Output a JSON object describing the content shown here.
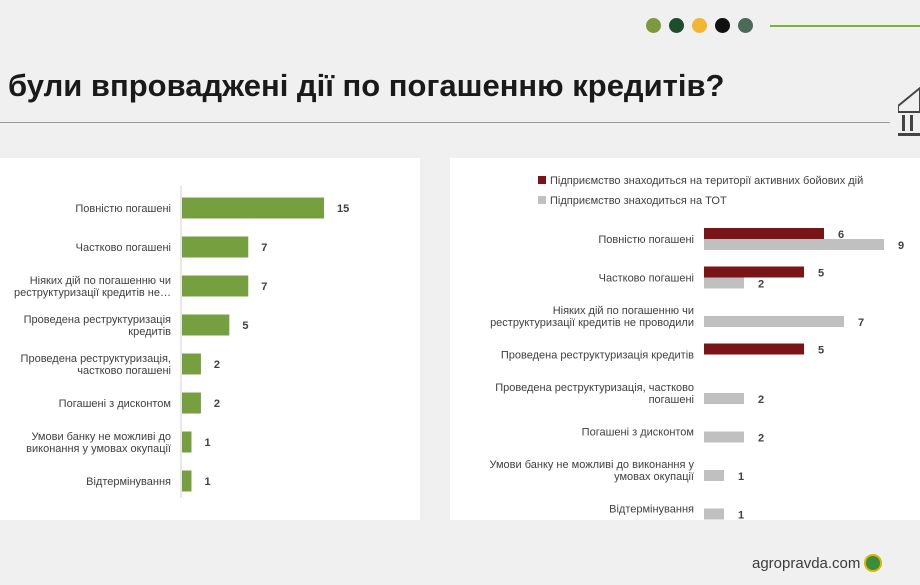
{
  "header": {
    "title": "були впроваджені дії по погашенню кредитів?",
    "dots": [
      "#7b9a3c",
      "#1e4d2b",
      "#f2b632",
      "#111111",
      "#4a6b5a"
    ]
  },
  "watermark": "agropravda.com",
  "chart_data": [
    {
      "type": "bar",
      "orientation": "horizontal",
      "categories": [
        [
          "Повністю погашені"
        ],
        [
          "Частково погашені"
        ],
        [
          "Ніяких дій по погашенню чи",
          "реструктуризації кредитів не…"
        ],
        [
          "Проведена реструктуризація",
          "кредитів"
        ],
        [
          "Проведена реструктуризація,",
          "частково погашені"
        ],
        [
          "Погашені з дисконтом"
        ],
        [
          "Умови банку не можливі до",
          "виконання у умовах окупації"
        ],
        [
          "Відтермінування"
        ]
      ],
      "series": [
        {
          "values": [
            15,
            7,
            7,
            5,
            2,
            2,
            1,
            1
          ],
          "color": "#76a040"
        }
      ],
      "xlim": [
        0,
        15
      ]
    },
    {
      "type": "bar",
      "orientation": "horizontal",
      "legend_position": "top",
      "categories": [
        [
          "Повністю погашені"
        ],
        [
          "Частково погашені"
        ],
        [
          "Ніяких дій по погашенню чи",
          "реструктуризації кредитів не проводили"
        ],
        [
          "Проведена реструктуризація кредитів"
        ],
        [
          "Проведена реструктуризація, частково",
          "погашені"
        ],
        [
          "Погашені з дисконтом"
        ],
        [
          "Умови банку не можливі до виконання у",
          "умовах окупації"
        ],
        [
          "Відтермінування"
        ]
      ],
      "series": [
        {
          "name": "Підприємство знаходиться  на території активних бойових дій",
          "color": "#7b1416",
          "values": [
            6,
            5,
            null,
            5,
            null,
            null,
            null,
            null
          ]
        },
        {
          "name": "Підприємство знаходиться  на ТОТ",
          "color": "#c0c0c0",
          "values": [
            9,
            2,
            7,
            null,
            2,
            2,
            1,
            1
          ]
        }
      ]
    }
  ]
}
